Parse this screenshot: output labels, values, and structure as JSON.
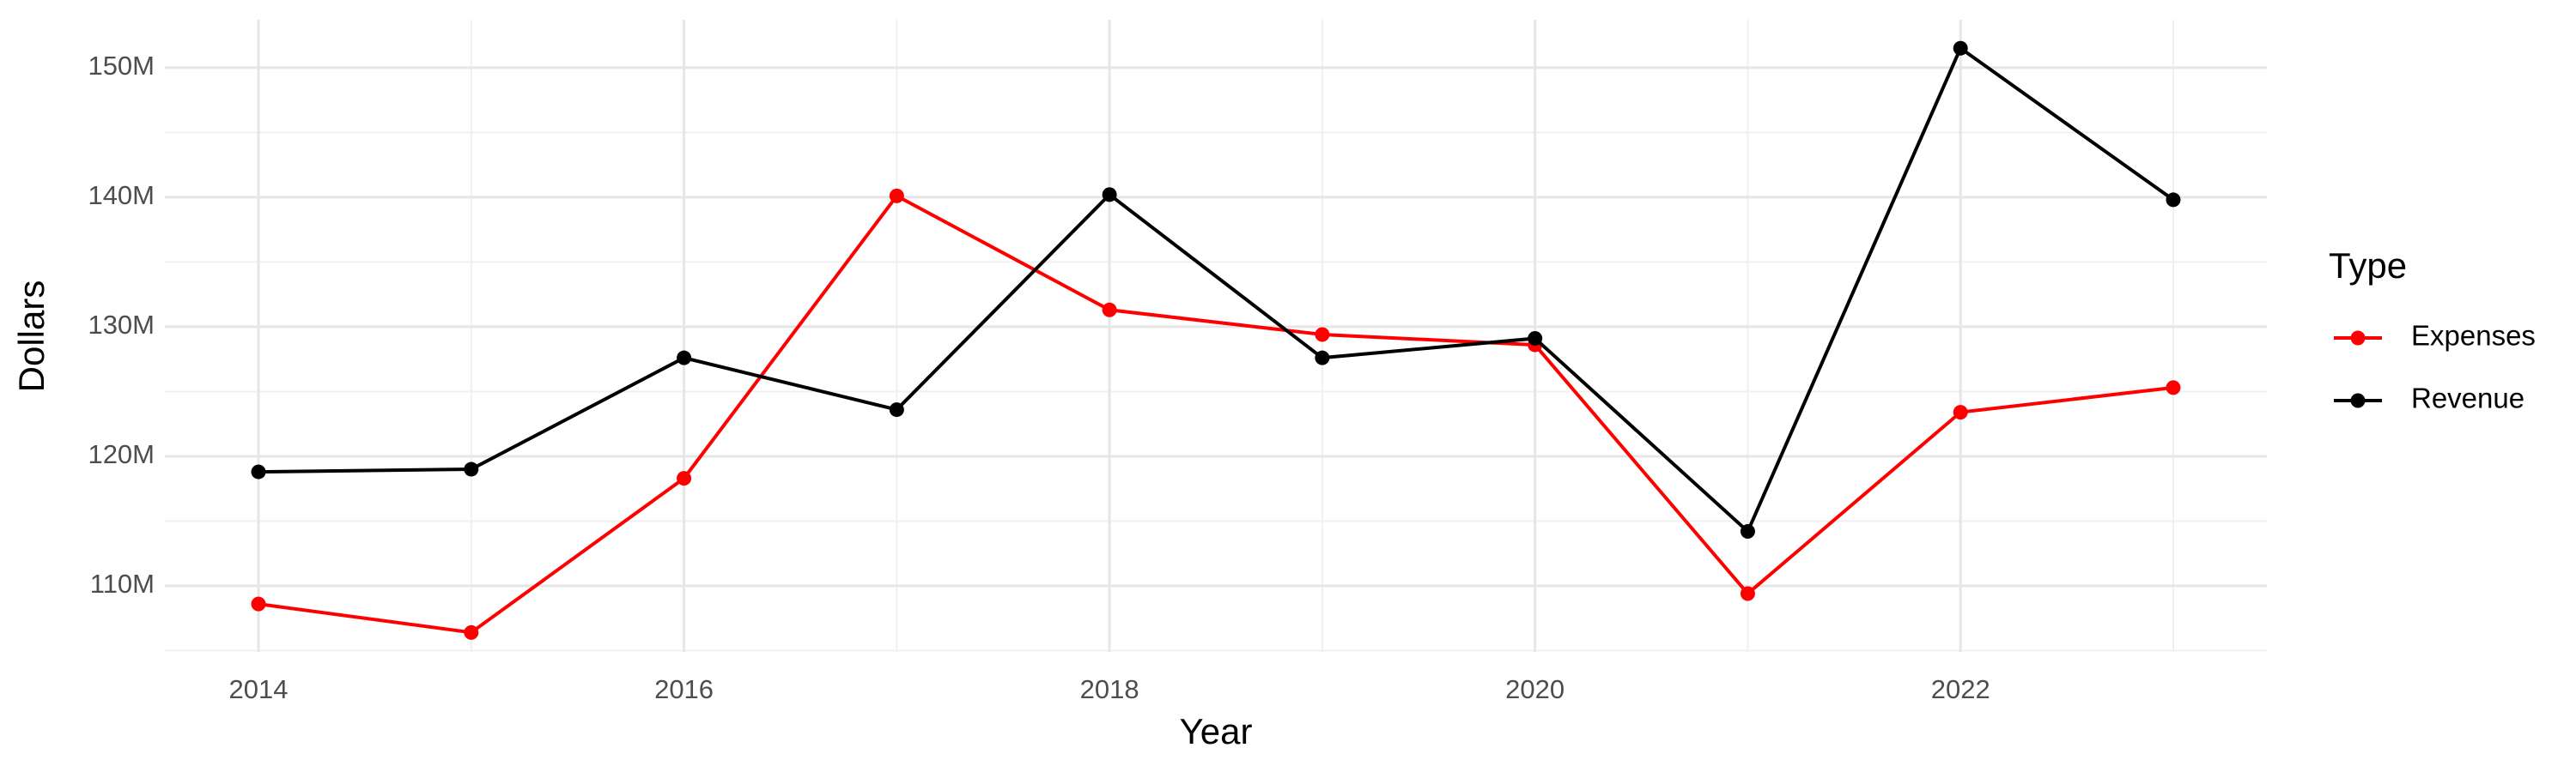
{
  "chart_data": {
    "type": "line",
    "x_label": "Year",
    "y_label": "Dollars",
    "legend_title": "Type",
    "legend_position": "right",
    "x": [
      2014,
      2015,
      2016,
      2017,
      2018,
      2019,
      2020,
      2021,
      2022,
      2023
    ],
    "series": [
      {
        "name": "Expenses",
        "color": "#ff0000",
        "values": [
          108600000,
          106400000,
          118300000,
          140100000,
          131300000,
          129400000,
          128600000,
          109400000,
          123400000,
          125300000
        ]
      },
      {
        "name": "Revenue",
        "color": "#000000",
        "values": [
          118800000,
          119000000,
          127600000,
          123600000,
          140200000,
          127600000,
          129100000,
          114200000,
          151500000,
          139800000
        ]
      }
    ],
    "xlim": [
      2013.56,
      2023.44
    ],
    "xticks": [
      2014,
      2016,
      2018,
      2020,
      2022
    ],
    "ylim": [
      104900000,
      153700000
    ],
    "yticks": [
      {
        "value": 110000000,
        "label": "110M"
      },
      {
        "value": 120000000,
        "label": "120M"
      },
      {
        "value": 130000000,
        "label": "130M"
      },
      {
        "value": 140000000,
        "label": "140M"
      },
      {
        "value": 150000000,
        "label": "150M"
      }
    ],
    "grid": true
  }
}
